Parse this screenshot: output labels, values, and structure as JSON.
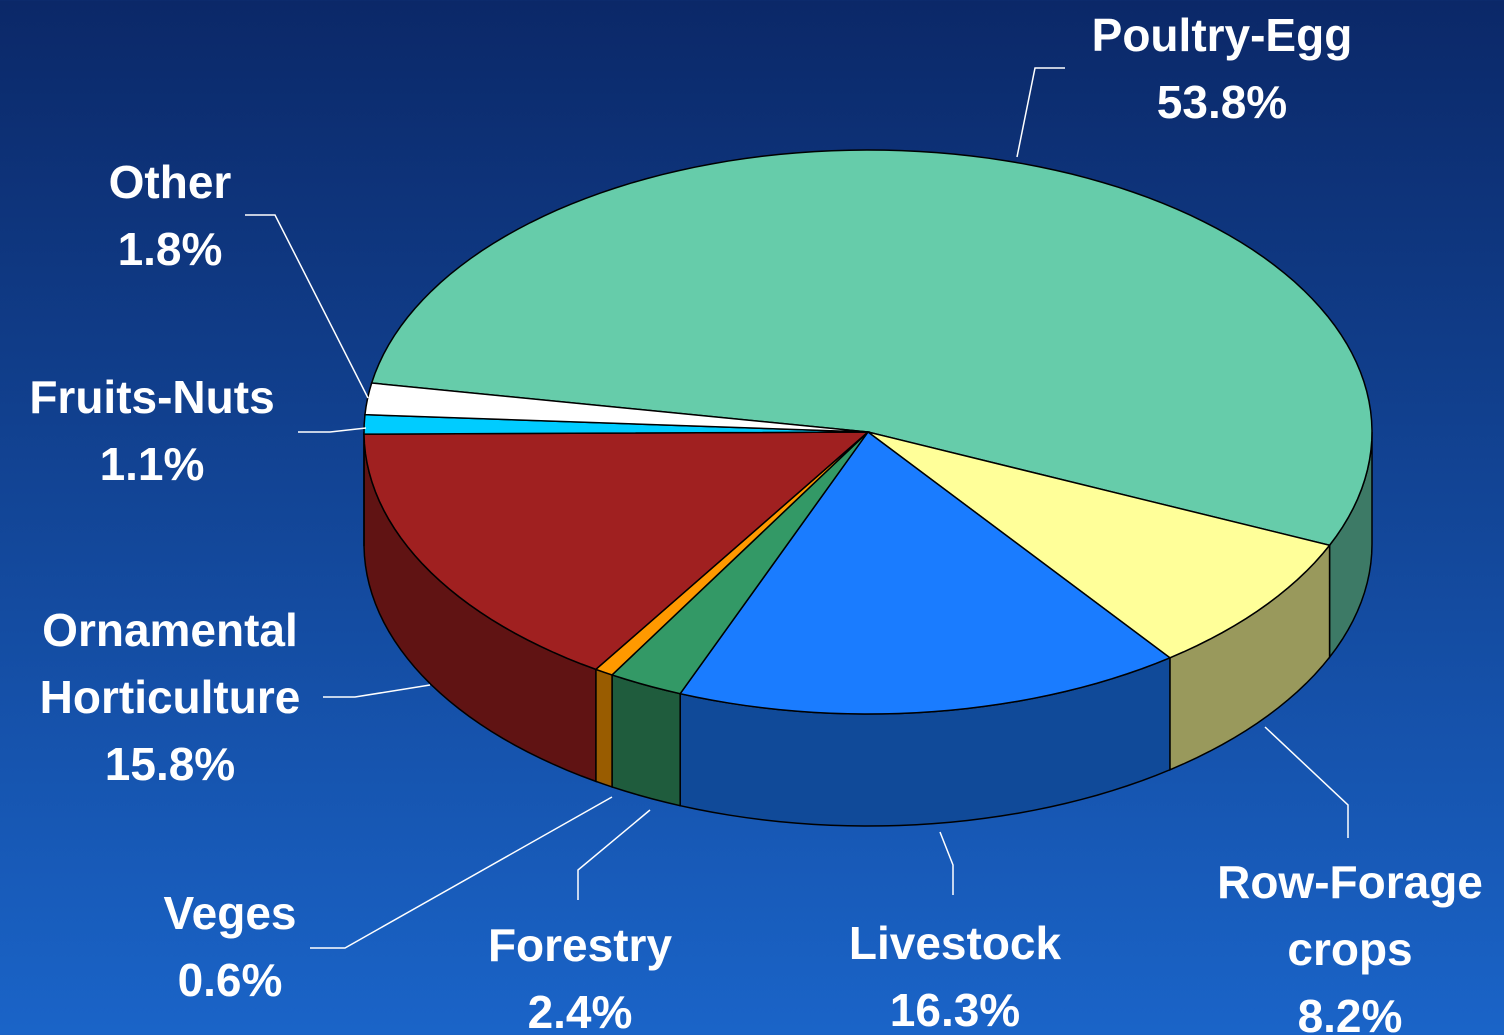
{
  "chart_data": {
    "type": "pie3d",
    "categories": [
      "Poultry-Egg",
      "Row-Forage crops",
      "Livestock",
      "Forestry",
      "Veges",
      "Ornamental Horticulture",
      "Fruits-Nuts",
      "Other"
    ],
    "values": [
      53.8,
      8.2,
      16.3,
      2.4,
      0.6,
      15.8,
      1.1,
      1.8
    ],
    "value_labels": [
      "53.8%",
      "8.2%",
      "16.3%",
      "2.4%",
      "0.6%",
      "15.8%",
      "1.1%",
      "1.8%"
    ],
    "colors": [
      "#66ccaa",
      "#ffff99",
      "#1a7cff",
      "#339966",
      "#ff9900",
      "#a02020",
      "#00ccff",
      "#ffffff"
    ]
  }
}
